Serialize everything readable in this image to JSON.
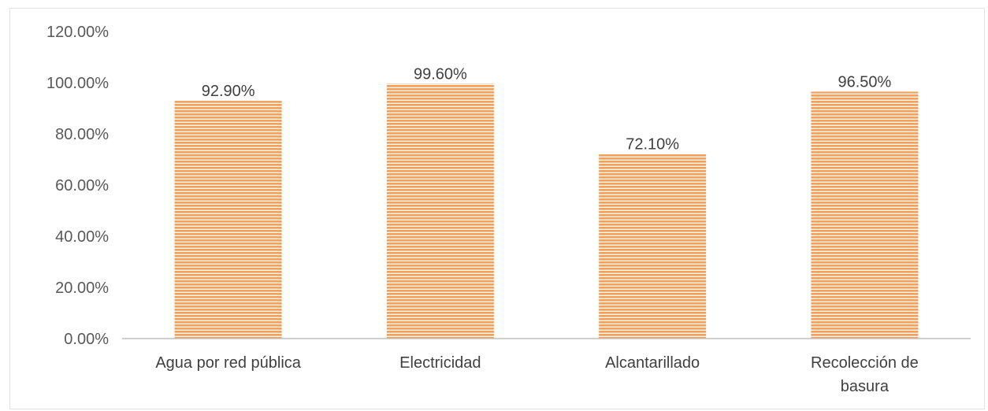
{
  "chart_data": {
    "type": "bar",
    "categories": [
      "Agua por red pública",
      "Electricidad",
      "Alcantarillado",
      "Recolección de basura"
    ],
    "category_label_lines": [
      [
        "Agua por red pública"
      ],
      [
        "Electricidad"
      ],
      [
        "Alcantarillado"
      ],
      [
        "Recolección de",
        "basura"
      ]
    ],
    "values": [
      92.9,
      99.6,
      72.1,
      96.5
    ],
    "data_labels": [
      "92.90%",
      "99.60%",
      "72.10%",
      "96.50%"
    ],
    "yticks": [
      0,
      20,
      40,
      60,
      80,
      100,
      120
    ],
    "ytick_labels": [
      "0.00%",
      "20.00%",
      "40.00%",
      "60.00%",
      "80.00%",
      "100.00%",
      "120.00%"
    ],
    "ylim": [
      0,
      120
    ],
    "title": "",
    "xlabel": "",
    "ylabel": "",
    "grid": false,
    "legend": "none",
    "colors": {
      "bar": "#f4a05a",
      "stripe": "#ffffff",
      "axis": "#bfbfbf"
    }
  }
}
